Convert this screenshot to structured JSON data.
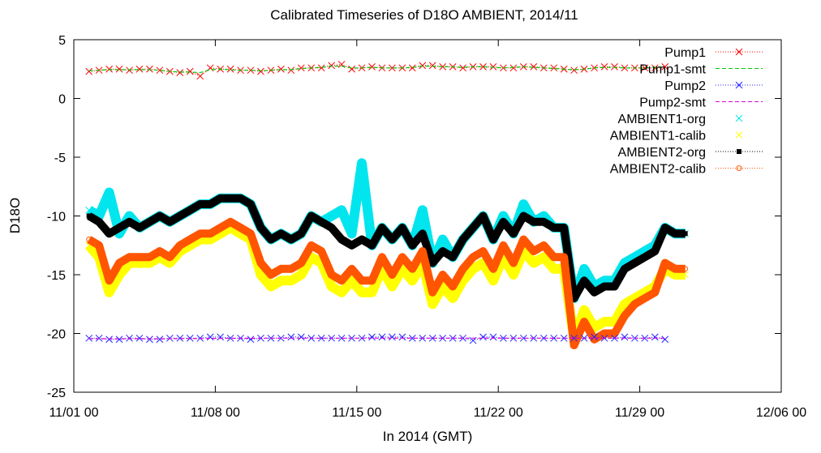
{
  "chart_data": {
    "type": "scatter",
    "title": "Calibrated Timeseries of D18O AMBIENT, 2014/11",
    "xlabel": "In 2014 (GMT)",
    "ylabel": "D18O",
    "xlim": [
      "2014-11-01 00:00",
      "2014-12-06 00:00"
    ],
    "ylim": [
      -25,
      5
    ],
    "x_ticks": [
      "11/01 00",
      "11/08 00",
      "11/15 00",
      "11/22 00",
      "11/29 00",
      "12/06 00"
    ],
    "y_ticks": [
      5,
      0,
      -5,
      -10,
      -15,
      -20,
      -25
    ],
    "grid": false,
    "legend_position": "top-right",
    "series": [
      {
        "name": "Pump1",
        "color": "#ff0000",
        "marker": "x",
        "line": "thin-dotted",
        "x": [
          "11/01 18:00",
          "11/02 06:00",
          "11/02 18:00",
          "11/03 06:00",
          "11/03 18:00",
          "11/04 06:00",
          "11/04 18:00",
          "11/05 06:00",
          "11/05 18:00",
          "11/06 06:00",
          "11/06 18:00",
          "11/07 06:00",
          "11/07 18:00",
          "11/08 06:00",
          "11/08 18:00",
          "11/09 06:00",
          "11/09 18:00",
          "11/10 06:00",
          "11/10 18:00",
          "11/11 06:00",
          "11/11 18:00",
          "11/12 06:00",
          "11/12 18:00",
          "11/13 06:00",
          "11/13 18:00",
          "11/14 06:00",
          "11/14 18:00",
          "11/15 06:00",
          "11/15 18:00",
          "11/16 06:00",
          "11/16 18:00",
          "11/17 06:00",
          "11/17 18:00",
          "11/18 06:00",
          "11/18 18:00",
          "11/19 06:00",
          "11/19 18:00",
          "11/20 06:00",
          "11/20 18:00",
          "11/21 06:00",
          "11/21 18:00",
          "11/22 06:00",
          "11/22 18:00",
          "11/23 06:00",
          "11/23 18:00",
          "11/24 06:00",
          "11/24 18:00",
          "11/25 06:00",
          "11/25 18:00",
          "11/26 06:00",
          "11/26 18:00",
          "11/27 06:00",
          "11/27 18:00",
          "11/28 06:00",
          "11/28 18:00",
          "11/29 06:00",
          "11/29 18:00",
          "11/30 06:00"
        ],
        "y": [
          2.3,
          2.4,
          2.5,
          2.5,
          2.4,
          2.5,
          2.5,
          2.4,
          2.3,
          2.2,
          2.3,
          1.9,
          2.6,
          2.5,
          2.5,
          2.4,
          2.4,
          2.3,
          2.4,
          2.5,
          2.4,
          2.6,
          2.6,
          2.6,
          2.8,
          2.9,
          2.5,
          2.6,
          2.7,
          2.6,
          2.6,
          2.6,
          2.6,
          2.8,
          2.8,
          2.7,
          2.7,
          2.6,
          2.7,
          2.7,
          2.7,
          2.6,
          2.6,
          2.7,
          2.7,
          2.6,
          2.6,
          2.5,
          2.4,
          2.5,
          2.6,
          2.7,
          2.7,
          2.6,
          2.6,
          2.6,
          2.6,
          2.7
        ]
      },
      {
        "name": "Pump1-smt",
        "color": "#00cc00",
        "marker": "none",
        "line": "dashed",
        "x": [
          "11/01 18:00",
          "11/02 06:00",
          "11/02 18:00",
          "11/03 06:00",
          "11/03 18:00",
          "11/04 06:00",
          "11/04 18:00",
          "11/05 06:00",
          "11/05 18:00",
          "11/06 06:00",
          "11/06 18:00",
          "11/07 06:00",
          "11/07 18:00",
          "11/08 06:00",
          "11/08 18:00",
          "11/09 06:00",
          "11/09 18:00",
          "11/10 06:00",
          "11/10 18:00",
          "11/11 06:00",
          "11/11 18:00",
          "11/12 06:00",
          "11/12 18:00",
          "11/13 06:00",
          "11/13 18:00",
          "11/14 06:00",
          "11/14 18:00",
          "11/15 06:00",
          "11/15 18:00",
          "11/16 06:00",
          "11/16 18:00",
          "11/17 06:00",
          "11/17 18:00",
          "11/18 06:00",
          "11/18 18:00",
          "11/19 06:00",
          "11/19 18:00",
          "11/20 06:00",
          "11/20 18:00",
          "11/21 06:00",
          "11/21 18:00",
          "11/22 06:00",
          "11/22 18:00",
          "11/23 06:00",
          "11/23 18:00",
          "11/24 06:00",
          "11/24 18:00",
          "11/25 06:00",
          "11/25 18:00",
          "11/26 06:00",
          "11/26 18:00",
          "11/27 06:00",
          "11/27 18:00",
          "11/28 06:00",
          "11/28 18:00",
          "11/29 06:00",
          "11/29 18:00",
          "11/30 06:00"
        ],
        "y": [
          2.35,
          2.4,
          2.45,
          2.45,
          2.45,
          2.45,
          2.45,
          2.4,
          2.3,
          2.25,
          2.25,
          2.2,
          2.45,
          2.5,
          2.45,
          2.4,
          2.4,
          2.35,
          2.4,
          2.45,
          2.45,
          2.55,
          2.6,
          2.65,
          2.75,
          2.75,
          2.6,
          2.6,
          2.65,
          2.6,
          2.6,
          2.6,
          2.65,
          2.75,
          2.75,
          2.7,
          2.7,
          2.65,
          2.7,
          2.7,
          2.65,
          2.6,
          2.65,
          2.7,
          2.65,
          2.6,
          2.55,
          2.5,
          2.45,
          2.5,
          2.6,
          2.65,
          2.65,
          2.6,
          2.6,
          2.6,
          2.65,
          2.7
        ]
      },
      {
        "name": "Pump2",
        "color": "#2222ff",
        "marker": "x",
        "line": "thin-dotted",
        "x": [
          "11/01 18:00",
          "11/02 06:00",
          "11/02 18:00",
          "11/03 06:00",
          "11/03 18:00",
          "11/04 06:00",
          "11/04 18:00",
          "11/05 06:00",
          "11/05 18:00",
          "11/06 06:00",
          "11/06 18:00",
          "11/07 06:00",
          "11/07 18:00",
          "11/08 06:00",
          "11/08 18:00",
          "11/09 06:00",
          "11/09 18:00",
          "11/10 06:00",
          "11/10 18:00",
          "11/11 06:00",
          "11/11 18:00",
          "11/12 06:00",
          "11/12 18:00",
          "11/13 06:00",
          "11/13 18:00",
          "11/14 06:00",
          "11/14 18:00",
          "11/15 06:00",
          "11/15 18:00",
          "11/16 06:00",
          "11/16 18:00",
          "11/17 06:00",
          "11/17 18:00",
          "11/18 06:00",
          "11/18 18:00",
          "11/19 06:00",
          "11/19 18:00",
          "11/20 06:00",
          "11/20 18:00",
          "11/21 06:00",
          "11/21 18:00",
          "11/22 06:00",
          "11/22 18:00",
          "11/23 06:00",
          "11/23 18:00",
          "11/24 06:00",
          "11/24 18:00",
          "11/25 06:00",
          "11/25 18:00",
          "11/26 06:00",
          "11/26 18:00",
          "11/27 06:00",
          "11/27 18:00",
          "11/28 06:00",
          "11/28 18:00",
          "11/29 06:00",
          "11/29 18:00",
          "11/30 06:00"
        ],
        "y": [
          -20.4,
          -20.4,
          -20.5,
          -20.5,
          -20.4,
          -20.4,
          -20.5,
          -20.5,
          -20.4,
          -20.4,
          -20.4,
          -20.4,
          -20.3,
          -20.3,
          -20.4,
          -20.4,
          -20.5,
          -20.4,
          -20.4,
          -20.4,
          -20.3,
          -20.3,
          -20.4,
          -20.4,
          -20.4,
          -20.4,
          -20.4,
          -20.4,
          -20.3,
          -20.3,
          -20.3,
          -20.3,
          -20.4,
          -20.4,
          -20.4,
          -20.4,
          -20.4,
          -20.4,
          -20.6,
          -20.3,
          -20.3,
          -20.4,
          -20.4,
          -20.4,
          -20.4,
          -20.4,
          -20.4,
          -20.4,
          -20.4,
          -20.4,
          -20.3,
          -20.4,
          -20.4,
          -20.3,
          -20.4,
          -20.4,
          -20.3,
          -20.5
        ]
      },
      {
        "name": "Pump2-smt",
        "color": "#dd00dd",
        "marker": "none",
        "line": "dashed",
        "x": [
          "11/01 18:00",
          "11/05 06:00",
          "11/10 06:00",
          "11/15 06:00",
          "11/20 06:00",
          "11/25 06:00",
          "11/30 06:00"
        ],
        "y": [
          -20.45,
          -20.45,
          -20.4,
          -20.4,
          -20.4,
          -20.4,
          -20.4
        ]
      },
      {
        "name": "AMBIENT1-org",
        "color": "#00e5ee",
        "marker": "x",
        "line": "none",
        "x": [
          "11/01 18:00",
          "11/02 06:00",
          "11/02 18:00",
          "11/03 06:00",
          "11/03 18:00",
          "11/04 06:00",
          "11/04 18:00",
          "11/05 06:00",
          "11/05 18:00",
          "11/06 06:00",
          "11/06 18:00",
          "11/07 06:00",
          "11/07 18:00",
          "11/08 06:00",
          "11/08 18:00",
          "11/09 06:00",
          "11/09 18:00",
          "11/10 06:00",
          "11/10 18:00",
          "11/11 06:00",
          "11/11 18:00",
          "11/12 06:00",
          "11/12 18:00",
          "11/13 06:00",
          "11/13 18:00",
          "11/14 06:00",
          "11/14 18:00",
          "11/15 06:00",
          "11/15 18:00",
          "11/16 06:00",
          "11/16 18:00",
          "11/17 06:00",
          "11/17 18:00",
          "11/18 06:00",
          "11/18 18:00",
          "11/19 06:00",
          "11/19 18:00",
          "11/20 06:00",
          "11/20 18:00",
          "11/21 06:00",
          "11/21 18:00",
          "11/22 06:00",
          "11/22 18:00",
          "11/23 06:00",
          "11/23 18:00",
          "11/24 06:00",
          "11/24 18:00",
          "11/25 06:00",
          "11/25 18:00",
          "11/26 06:00",
          "11/26 18:00",
          "11/27 06:00",
          "11/27 18:00",
          "11/28 06:00",
          "11/28 18:00",
          "11/29 06:00",
          "11/29 18:00",
          "11/30 06:00",
          "11/30 18:00",
          "12/01 06:00"
        ],
        "y": [
          -9.5,
          -10.0,
          -8.0,
          -11.5,
          -10.0,
          -11.0,
          -10.5,
          -10.0,
          -10.5,
          -10.0,
          -9.5,
          -9.0,
          -9.0,
          -8.5,
          -8.5,
          -8.5,
          -9.0,
          -11.0,
          -12.0,
          -11.5,
          -12.0,
          -11.5,
          -10.0,
          -10.5,
          -10.0,
          -9.5,
          -11.5,
          -5.5,
          -12.5,
          -11.0,
          -12.0,
          -11.0,
          -12.5,
          -9.5,
          -14.0,
          -12.0,
          -13.5,
          -12.0,
          -11.0,
          -10.0,
          -12.0,
          -10.0,
          -11.5,
          -9.0,
          -10.5,
          -10.0,
          -11.0,
          -11.0,
          -17.0,
          -14.5,
          -16.0,
          -15.5,
          -15.5,
          -14.0,
          -13.5,
          -13.0,
          -12.5,
          -11.0,
          -11.5,
          -11.5
        ]
      },
      {
        "name": "AMBIENT1-calib",
        "color": "#ffff00",
        "marker": "x",
        "line": "none",
        "x": [
          "11/01 18:00",
          "11/02 06:00",
          "11/02 18:00",
          "11/03 06:00",
          "11/03 18:00",
          "11/04 06:00",
          "11/04 18:00",
          "11/05 06:00",
          "11/05 18:00",
          "11/06 06:00",
          "11/06 18:00",
          "11/07 06:00",
          "11/07 18:00",
          "11/08 06:00",
          "11/08 18:00",
          "11/09 06:00",
          "11/09 18:00",
          "11/10 06:00",
          "11/10 18:00",
          "11/11 06:00",
          "11/11 18:00",
          "11/12 06:00",
          "11/12 18:00",
          "11/13 06:00",
          "11/13 18:00",
          "11/14 06:00",
          "11/14 18:00",
          "11/15 06:00",
          "11/15 18:00",
          "11/16 06:00",
          "11/16 18:00",
          "11/17 06:00",
          "11/17 18:00",
          "11/18 06:00",
          "11/18 18:00",
          "11/19 06:00",
          "11/19 18:00",
          "11/20 06:00",
          "11/20 18:00",
          "11/21 06:00",
          "11/21 18:00",
          "11/22 06:00",
          "11/22 18:00",
          "11/23 06:00",
          "11/23 18:00",
          "11/24 06:00",
          "11/24 18:00",
          "11/25 06:00",
          "11/25 18:00",
          "11/26 06:00",
          "11/26 18:00",
          "11/27 06:00",
          "11/27 18:00",
          "11/28 06:00",
          "11/28 18:00",
          "11/29 06:00",
          "11/29 18:00",
          "11/30 06:00",
          "11/30 18:00",
          "12/01 06:00"
        ],
        "y": [
          -12.5,
          -13.5,
          -16.5,
          -15.0,
          -14.0,
          -14.0,
          -14.0,
          -13.5,
          -14.0,
          -13.0,
          -12.5,
          -12.0,
          -12.0,
          -11.5,
          -11.0,
          -11.5,
          -12.0,
          -15.0,
          -16.0,
          -15.5,
          -15.5,
          -15.0,
          -13.5,
          -14.0,
          -16.0,
          -16.5,
          -15.5,
          -16.5,
          -16.5,
          -14.5,
          -16.0,
          -14.5,
          -15.5,
          -14.0,
          -17.5,
          -16.0,
          -17.0,
          -15.5,
          -14.5,
          -14.0,
          -15.5,
          -13.5,
          -15.0,
          -13.0,
          -14.0,
          -13.5,
          -14.5,
          -14.5,
          -20.5,
          -18.0,
          -19.5,
          -19.0,
          -19.0,
          -17.5,
          -17.0,
          -16.5,
          -16.0,
          -14.5,
          -15.0,
          -15.0
        ]
      },
      {
        "name": "AMBIENT2-org",
        "color": "#000000",
        "marker": "square",
        "line": "thin-dotted",
        "x": [
          "11/01 18:00",
          "11/02 06:00",
          "11/02 18:00",
          "11/03 06:00",
          "11/03 18:00",
          "11/04 06:00",
          "11/04 18:00",
          "11/05 06:00",
          "11/05 18:00",
          "11/06 06:00",
          "11/06 18:00",
          "11/07 06:00",
          "11/07 18:00",
          "11/08 06:00",
          "11/08 18:00",
          "11/09 06:00",
          "11/09 18:00",
          "11/10 06:00",
          "11/10 18:00",
          "11/11 06:00",
          "11/11 18:00",
          "11/12 06:00",
          "11/12 18:00",
          "11/13 06:00",
          "11/13 18:00",
          "11/14 06:00",
          "11/14 18:00",
          "11/15 06:00",
          "11/15 18:00",
          "11/16 06:00",
          "11/16 18:00",
          "11/17 06:00",
          "11/17 18:00",
          "11/18 06:00",
          "11/18 18:00",
          "11/19 06:00",
          "11/19 18:00",
          "11/20 06:00",
          "11/20 18:00",
          "11/21 06:00",
          "11/21 18:00",
          "11/22 06:00",
          "11/22 18:00",
          "11/23 06:00",
          "11/23 18:00",
          "11/24 06:00",
          "11/24 18:00",
          "11/25 06:00",
          "11/25 18:00",
          "11/26 06:00",
          "11/26 18:00",
          "11/27 06:00",
          "11/27 18:00",
          "11/28 06:00",
          "11/28 18:00",
          "11/29 06:00",
          "11/29 18:00",
          "11/30 06:00",
          "11/30 18:00",
          "12/01 06:00"
        ],
        "y": [
          -10.0,
          -10.5,
          -11.5,
          -11.0,
          -10.5,
          -11.0,
          -10.5,
          -10.0,
          -10.5,
          -10.0,
          -9.5,
          -9.0,
          -9.0,
          -8.5,
          -8.5,
          -8.5,
          -9.0,
          -11.0,
          -12.0,
          -11.5,
          -12.0,
          -11.5,
          -10.0,
          -10.5,
          -11.0,
          -12.0,
          -12.5,
          -12.0,
          -12.5,
          -11.0,
          -12.0,
          -11.0,
          -12.5,
          -11.5,
          -14.0,
          -13.0,
          -13.5,
          -12.0,
          -11.0,
          -10.0,
          -12.0,
          -10.5,
          -11.5,
          -10.0,
          -10.5,
          -10.5,
          -11.0,
          -11.0,
          -17.0,
          -15.5,
          -16.5,
          -16.0,
          -16.0,
          -14.5,
          -14.0,
          -13.5,
          -13.0,
          -11.0,
          -11.5,
          -11.5
        ]
      },
      {
        "name": "AMBIENT2-calib",
        "color": "#ff5500",
        "marker": "circle",
        "line": "thin-dotted",
        "x": [
          "11/01 18:00",
          "11/02 06:00",
          "11/02 18:00",
          "11/03 06:00",
          "11/03 18:00",
          "11/04 06:00",
          "11/04 18:00",
          "11/05 06:00",
          "11/05 18:00",
          "11/06 06:00",
          "11/06 18:00",
          "11/07 06:00",
          "11/07 18:00",
          "11/08 06:00",
          "11/08 18:00",
          "11/09 06:00",
          "11/09 18:00",
          "11/10 06:00",
          "11/10 18:00",
          "11/11 06:00",
          "11/11 18:00",
          "11/12 06:00",
          "11/12 18:00",
          "11/13 06:00",
          "11/13 18:00",
          "11/14 06:00",
          "11/14 18:00",
          "11/15 06:00",
          "11/15 18:00",
          "11/16 06:00",
          "11/16 18:00",
          "11/17 06:00",
          "11/17 18:00",
          "11/18 06:00",
          "11/18 18:00",
          "11/19 06:00",
          "11/19 18:00",
          "11/20 06:00",
          "11/20 18:00",
          "11/21 06:00",
          "11/21 18:00",
          "11/22 06:00",
          "11/22 18:00",
          "11/23 06:00",
          "11/23 18:00",
          "11/24 06:00",
          "11/24 18:00",
          "11/25 06:00",
          "11/25 18:00",
          "11/26 06:00",
          "11/26 18:00",
          "11/27 06:00",
          "11/27 18:00",
          "11/28 06:00",
          "11/28 18:00",
          "11/29 06:00",
          "11/29 18:00",
          "11/30 06:00",
          "11/30 18:00",
          "12/01 06:00"
        ],
        "y": [
          -12.0,
          -12.5,
          -15.5,
          -14.0,
          -13.5,
          -13.5,
          -13.5,
          -13.0,
          -13.5,
          -12.5,
          -12.0,
          -11.5,
          -11.5,
          -11.0,
          -10.5,
          -11.0,
          -11.5,
          -14.0,
          -15.0,
          -14.5,
          -14.5,
          -14.0,
          -12.5,
          -13.0,
          -15.0,
          -15.5,
          -14.5,
          -15.5,
          -15.5,
          -13.5,
          -15.0,
          -13.5,
          -14.5,
          -13.0,
          -16.5,
          -15.0,
          -16.0,
          -14.5,
          -13.5,
          -13.0,
          -14.5,
          -12.5,
          -14.0,
          -12.0,
          -13.0,
          -12.5,
          -13.5,
          -13.5,
          -21.0,
          -19.0,
          -20.5,
          -20.0,
          -20.0,
          -18.5,
          -17.5,
          -17.0,
          -16.5,
          -14.0,
          -14.5,
          -14.5
        ]
      }
    ]
  }
}
